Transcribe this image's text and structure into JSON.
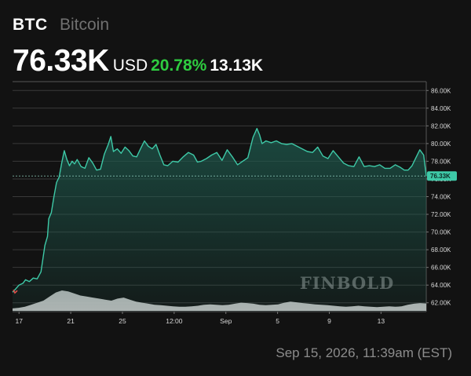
{
  "header": {
    "symbol": "BTC",
    "name": "Bitcoin",
    "price": "76.33K",
    "currency": "USD",
    "change_percent": "20.78%",
    "change_abs": "13.13K"
  },
  "footer": {
    "timestamp": "Sep 15, 2026, 11:39am (EST)"
  },
  "watermark": "FINBOLD",
  "colors": {
    "background": "#121212",
    "line": "#3ec9a7",
    "area": "#1e5a4e",
    "change": "#2ecc40",
    "start_marker": "#e0504a",
    "volume": "#d4d4d4"
  },
  "chart_data": {
    "type": "line",
    "title": "",
    "xlabel": "",
    "ylabel": "",
    "y_unit": "USD",
    "ylim": [
      61000,
      87000
    ],
    "y_ticks": [
      62000,
      64000,
      66000,
      68000,
      70000,
      72000,
      74000,
      76000,
      78000,
      80000,
      82000,
      84000,
      86000
    ],
    "y_tick_labels": [
      "62.00K",
      "64.00K",
      "66.00K",
      "68.00K",
      "70.00K",
      "72.00K",
      "74.00K",
      "76.00K",
      "78.00K",
      "80.00K",
      "82.00K",
      "84.00K",
      "86.00K"
    ],
    "x_tick_labels": [
      "17",
      "21",
      "25",
      "12:00",
      "Sep",
      "5",
      "9",
      "13"
    ],
    "x_tick_positions": [
      0.5,
      4.5,
      8.5,
      12.5,
      16.5,
      20.5,
      24.5,
      28.5
    ],
    "x_range": [
      0,
      32
    ],
    "current_value": 76330,
    "current_label": "76.33K",
    "grid": true,
    "series": [
      {
        "x": [
          0,
          0.2,
          0.5,
          0.8,
          1.0,
          1.3,
          1.6,
          1.9,
          2.2,
          2.5,
          2.7,
          2.8,
          3.0,
          3.2,
          3.4,
          3.6,
          3.8,
          4.0,
          4.2,
          4.4,
          4.6,
          4.8,
          5.0,
          5.3,
          5.6,
          5.9,
          6.2,
          6.5,
          6.8,
          7.1,
          7.4,
          7.6,
          7.8,
          8.1,
          8.4,
          8.7,
          9.0,
          9.3,
          9.6,
          9.9,
          10.2,
          10.5,
          10.8,
          11.1,
          11.4,
          11.7,
          12.0,
          12.4,
          12.8,
          13.2,
          13.6,
          14.0,
          14.3,
          14.6,
          15.0,
          15.4,
          15.8,
          16.2,
          16.6,
          17.0,
          17.4,
          17.8,
          18.2,
          18.6,
          18.9,
          19.1,
          19.3,
          19.6,
          20.0,
          20.4,
          20.8,
          21.2,
          21.6,
          22.0,
          22.4,
          22.8,
          23.2,
          23.6,
          24.0,
          24.4,
          24.8,
          25.2,
          25.6,
          26.0,
          26.4,
          26.8,
          27.2,
          27.6,
          28.0,
          28.4,
          28.8,
          29.2,
          29.6,
          30.0,
          30.3,
          30.6,
          30.9,
          31.2,
          31.5,
          31.8,
          32.0
        ],
        "values": [
          63200,
          63500,
          64000,
          64200,
          64600,
          64400,
          64800,
          64700,
          65500,
          68500,
          69500,
          71500,
          72200,
          74000,
          75600,
          76200,
          77800,
          79200,
          78200,
          77500,
          78000,
          77700,
          78200,
          77400,
          77200,
          78400,
          77800,
          77000,
          77100,
          78800,
          79900,
          80800,
          79100,
          79400,
          78900,
          79600,
          79200,
          78600,
          78500,
          79400,
          80300,
          79700,
          79400,
          79900,
          78700,
          77600,
          77500,
          78000,
          77900,
          78500,
          79000,
          78700,
          77900,
          78000,
          78300,
          78700,
          79000,
          78100,
          79300,
          78500,
          77600,
          78000,
          78400,
          80700,
          81700,
          81000,
          80000,
          80300,
          80100,
          80300,
          80000,
          79900,
          80000,
          79700,
          79400,
          79100,
          79000,
          79600,
          78600,
          78300,
          79200,
          78500,
          77800,
          77500,
          77400,
          78500,
          77400,
          77500,
          77400,
          77600,
          77200,
          77200,
          77600,
          77300,
          77000,
          77000,
          77500,
          78400,
          79300,
          78700,
          76330
        ]
      }
    ],
    "volume_profile": [
      0.12,
      0.15,
      0.2,
      0.3,
      0.4,
      0.5,
      0.7,
      0.9,
      1.0,
      0.95,
      0.85,
      0.75,
      0.7,
      0.65,
      0.6,
      0.55,
      0.5,
      0.6,
      0.65,
      0.55,
      0.45,
      0.4,
      0.35,
      0.3,
      0.28,
      0.25,
      0.22,
      0.2,
      0.2,
      0.22,
      0.25,
      0.3,
      0.32,
      0.3,
      0.28,
      0.3,
      0.35,
      0.4,
      0.38,
      0.35,
      0.3,
      0.28,
      0.3,
      0.32,
      0.4,
      0.45,
      0.42,
      0.38,
      0.35,
      0.32,
      0.3,
      0.28,
      0.25,
      0.22,
      0.2,
      0.22,
      0.25,
      0.22,
      0.2,
      0.18,
      0.2,
      0.22,
      0.2,
      0.22,
      0.3,
      0.35,
      0.38,
      0.36
    ]
  }
}
